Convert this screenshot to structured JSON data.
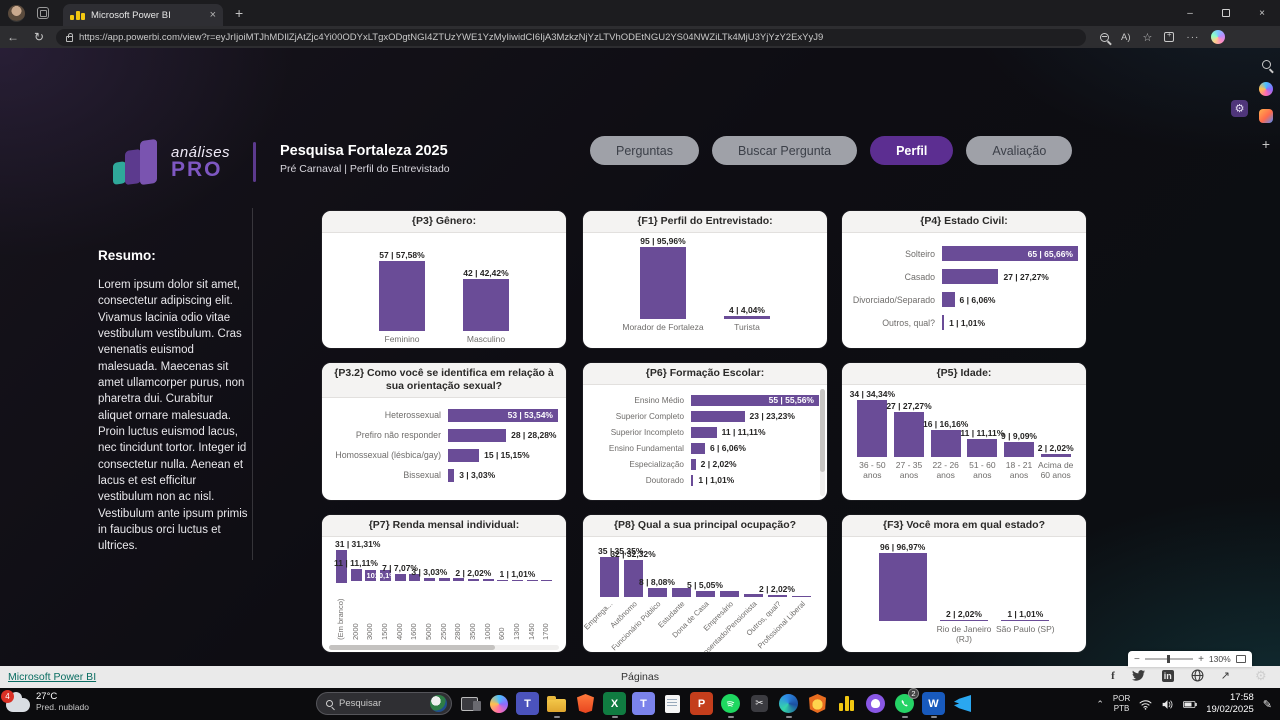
{
  "browser": {
    "tab_title": "Microsoft Power BI",
    "url": "https://app.powerbi.com/view?r=eyJrIjoiMTJhMDIlZjAtZjc4Yi00ODYxLTgxODgtNGI4ZTUzYWE1YzMyIiwidCI6IjA3MzkzNjYzLTVhODEtNGU2YS04NWZiLTk4MjU3YjYzY2ExYyJ9",
    "read_aloud_label": "A)"
  },
  "header": {
    "logo_line1": "análises",
    "logo_line2": "PRO",
    "title": "Pesquisa Fortaleza 2025",
    "subtitle": "Pré Carnaval  |  Perfil do Entrevistado",
    "nav": [
      {
        "label": "Perguntas",
        "active": false
      },
      {
        "label": "Buscar Pergunta",
        "active": false
      },
      {
        "label": "Perfil",
        "active": true
      },
      {
        "label": "Avaliação",
        "active": false
      }
    ]
  },
  "sidebar": {
    "heading": "Resumo:",
    "body": "Lorem ipsum dolor sit amet, consectetur adipiscing elit. Vivamus lacinia odio vitae vestibulum vestibulum. Cras venenatis euismod malesuada. Maecenas sit amet ullamcorper purus, non pharetra dui. Curabitur aliquet ornare malesuada. Proin luctus euismod lacus, nec tincidunt tortor. Integer id consectetur nulla. Aenean et lacus et est efficitur vestibulum non ac nisl. Vestibulum ante ipsum primis in faucibus orci luctus et ultrices."
  },
  "chart_data": [
    {
      "id": "p3",
      "type": "column",
      "title": "{P3} Gênero:",
      "categories": [
        "Feminino",
        "Masculino"
      ],
      "values": [
        57,
        42
      ],
      "labels": [
        "57 | 57,58%",
        "42 | 42,42%"
      ]
    },
    {
      "id": "f1",
      "type": "column",
      "title": "{F1} Perfil do Entrevistado:",
      "categories": [
        "Morador de Fortaleza",
        "Turista"
      ],
      "values": [
        95,
        4
      ],
      "labels": [
        "95 | 95,96%",
        "4 | 4,04%"
      ]
    },
    {
      "id": "p4",
      "type": "bar",
      "title": "{P4} Estado Civil:",
      "categories": [
        "Solteiro",
        "Casado",
        "Divorciado/Separado",
        "Outros, qual?"
      ],
      "values": [
        65,
        27,
        6,
        1
      ],
      "labels": [
        "65 | 65,66%",
        "27 | 27,27%",
        "6 | 6,06%",
        "1 | 1,01%"
      ],
      "first_inside": true
    },
    {
      "id": "p32",
      "type": "bar",
      "title": "{P3.2} Como você se identifica em relação à sua orientação sexual?",
      "categories": [
        "Heterossexual",
        "Prefiro não responder",
        "Homossexual (lésbica/gay)",
        "Bissexual"
      ],
      "values": [
        53,
        28,
        15,
        3
      ],
      "labels": [
        "53 | 53,54%",
        "28 | 28,28%",
        "15 | 15,15%",
        "3 | 3,03%"
      ],
      "first_inside": true
    },
    {
      "id": "p6",
      "type": "bar",
      "title": "{P6} Formação Escolar:",
      "categories": [
        "Ensino Médio",
        "Superior Completo",
        "Superior Incompleto",
        "Ensino Fundamental",
        "Especialização",
        "Doutorado"
      ],
      "values": [
        55,
        23,
        11,
        6,
        2,
        1
      ],
      "labels": [
        "55 | 55,56%",
        "23 | 23,23%",
        "11 | 11,11%",
        "6 | 6,06%",
        "2 | 2,02%",
        "1 | 1,01%"
      ],
      "first_inside": true
    },
    {
      "id": "p5",
      "type": "column",
      "title": "{P5} Idade:",
      "categories": [
        "36 - 50 anos",
        "27 - 35 anos",
        "22 - 26 anos",
        "51 - 60 anos",
        "18 - 21 anos",
        "Acima de 60 anos"
      ],
      "values": [
        34,
        27,
        16,
        11,
        9,
        2
      ],
      "labels": [
        "34 | 34,34%",
        "27 | 27,27%",
        "16 | 16,16%",
        "11 | 11,11%",
        "9 | 9,09%",
        "2 | 2,02%"
      ]
    },
    {
      "id": "p7",
      "type": "column",
      "title": "{P7} Renda mensal individual:",
      "categories": [
        "(Em branco)",
        "2000",
        "3000",
        "1500",
        "4000",
        "1600",
        "5000",
        "2500",
        "2800",
        "3500",
        "1000",
        "600",
        "1300",
        "1450",
        "1700"
      ],
      "values": [
        31,
        11,
        10,
        10,
        7,
        7,
        3,
        3,
        3,
        2,
        2,
        1,
        1,
        1,
        1
      ],
      "labels": [
        "31 | 31,31%",
        "11 | 11,11%",
        "",
        "",
        "7 | 7,07%",
        "",
        "3 | 3,03%",
        "",
        "",
        "2 | 2,02%",
        "",
        "",
        "1 | 1,01%",
        "",
        ""
      ],
      "inside_labels": {
        "2": "10",
        "3": "10,1%"
      }
    },
    {
      "id": "p8",
      "type": "column",
      "title": "{P8} Qual a sua principal ocupação?",
      "categories": [
        "Emprega...",
        "Autônomo",
        "Funcionário Público",
        "Estudante",
        "Dona de Casa",
        "Empresário",
        "Aposentado/Pensionista",
        "Outros, qual?",
        "Profissional Liberal"
      ],
      "values": [
        35,
        32,
        8,
        8,
        5,
        5,
        3,
        2,
        1
      ],
      "labels": [
        "35 | 35,35%",
        "32 | 32,32%",
        "8 | 8,08%",
        "",
        "5 | 5,05%",
        "",
        "",
        "2 | 2,02%",
        ""
      ]
    },
    {
      "id": "f3",
      "type": "column",
      "title": "{F3} Você mora em qual estado?",
      "categories": [
        "",
        "Rio de Janeiro (RJ)",
        "São Paulo (SP)"
      ],
      "values": [
        96,
        2,
        1
      ],
      "labels": [
        "96 | 96,97%",
        "2 | 2,02%",
        "1 | 1,01%"
      ]
    }
  ],
  "footer": {
    "left_link": "Microsoft Power BI",
    "center": "Páginas",
    "zoom_pct": "130%"
  },
  "taskbar": {
    "weather_badge": "4",
    "weather_temp": "27°C",
    "weather_desc": "Pred. nublado",
    "search_placeholder": "Pesquisar",
    "whatsapp_badge": "2",
    "lang_line1": "POR",
    "lang_line2": "PTB",
    "time": "17:58",
    "date": "19/02/2025"
  },
  "colors": {
    "accent_purple": "#5c2e91",
    "bar_purple": "#6a4c97",
    "footer_link_teal": "#0a6e62",
    "badge_red": "#d93025"
  },
  "icons": [
    "person-avatar",
    "workspaces-icon",
    "powerbi-favicon",
    "close-icon",
    "new-tab-icon",
    "back-icon",
    "refresh-icon",
    "lock-icon",
    "zoom-out-icon",
    "read-aloud-icon",
    "favorite-star-icon",
    "collections-icon",
    "more-icon",
    "copilot-icon",
    "minimize-icon",
    "maximize-icon",
    "close-window-icon",
    "gear-icon",
    "search-icon",
    "designer-icon",
    "plus-icon",
    "facebook-icon",
    "twitter-icon",
    "linkedin-icon",
    "web-icon",
    "share-arrow-icon",
    "cloud-icon",
    "start-icon",
    "task-view-icon",
    "teams-icon",
    "file-explorer-icon",
    "brave-icon",
    "excel-icon",
    "notepad-icon",
    "powerpoint-icon",
    "spotify-icon",
    "snipping-icon",
    "edge-icon",
    "badge-icon",
    "powerbi-icon",
    "github-icon",
    "whatsapp-icon",
    "word-icon",
    "vscode-icon",
    "chevron-up-icon",
    "wifi-icon",
    "volume-icon",
    "battery-icon",
    "pen-icon"
  ]
}
